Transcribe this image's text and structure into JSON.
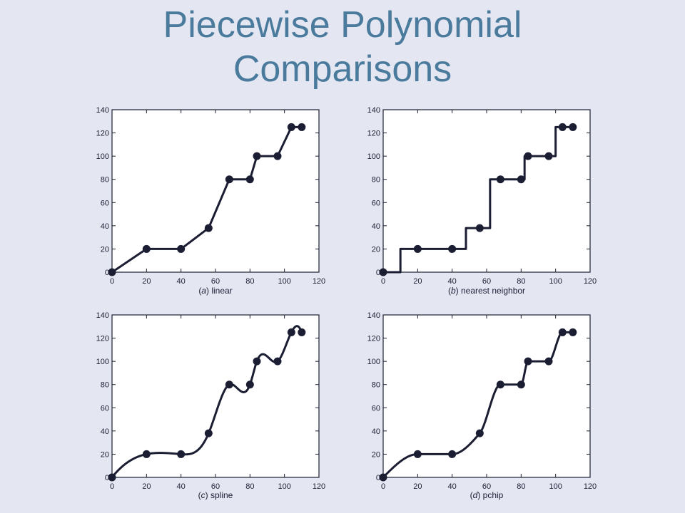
{
  "title": {
    "line1": "Piecewise Polynomial",
    "line2": "Comparisons"
  },
  "colors": {
    "background": "#e4e6f2",
    "plot_background": "#ffffff",
    "title": "#4a7a9c",
    "line": "#1b1e33"
  },
  "chart_data": [
    {
      "type": "line",
      "method": "linear",
      "caption_letter": "a",
      "caption_text": "linear",
      "x": [
        0,
        20,
        40,
        56,
        68,
        80,
        84,
        96,
        104,
        110
      ],
      "y": [
        0,
        20,
        20,
        38,
        80,
        80,
        100,
        100,
        125,
        125
      ],
      "xticks": [
        0,
        20,
        40,
        60,
        80,
        100,
        120
      ],
      "yticks": [
        0,
        20,
        40,
        60,
        80,
        100,
        120,
        140
      ],
      "xlim": [
        0,
        120
      ],
      "ylim": [
        0,
        140
      ],
      "xlabel": "",
      "ylabel": "",
      "grid": false
    },
    {
      "type": "line",
      "method": "nearest",
      "caption_letter": "b",
      "caption_text": "nearest neighbor",
      "x": [
        0,
        20,
        40,
        56,
        68,
        80,
        84,
        96,
        104,
        110
      ],
      "y": [
        0,
        20,
        20,
        38,
        80,
        80,
        100,
        100,
        125,
        125
      ],
      "xticks": [
        0,
        20,
        40,
        60,
        80,
        100,
        120
      ],
      "yticks": [
        0,
        20,
        40,
        60,
        80,
        100,
        120,
        140
      ],
      "xlim": [
        0,
        120
      ],
      "ylim": [
        0,
        140
      ],
      "xlabel": "",
      "ylabel": "",
      "grid": false
    },
    {
      "type": "line",
      "method": "spline",
      "caption_letter": "c",
      "caption_text": "spline",
      "x": [
        0,
        20,
        40,
        56,
        68,
        80,
        84,
        96,
        104,
        110
      ],
      "y": [
        0,
        20,
        20,
        38,
        80,
        80,
        100,
        100,
        125,
        125
      ],
      "xticks": [
        0,
        20,
        40,
        60,
        80,
        100,
        120
      ],
      "yticks": [
        0,
        20,
        40,
        60,
        80,
        100,
        120,
        140
      ],
      "xlim": [
        0,
        120
      ],
      "ylim": [
        0,
        140
      ],
      "xlabel": "",
      "ylabel": "",
      "grid": false
    },
    {
      "type": "line",
      "method": "pchip",
      "caption_letter": "d",
      "caption_text": "pchip",
      "x": [
        0,
        20,
        40,
        56,
        68,
        80,
        84,
        96,
        104,
        110
      ],
      "y": [
        0,
        20,
        20,
        38,
        80,
        80,
        100,
        100,
        125,
        125
      ],
      "xticks": [
        0,
        20,
        40,
        60,
        80,
        100,
        120
      ],
      "yticks": [
        0,
        20,
        40,
        60,
        80,
        100,
        120,
        140
      ],
      "xlim": [
        0,
        120
      ],
      "ylim": [
        0,
        140
      ],
      "xlabel": "",
      "ylabel": "",
      "grid": false
    }
  ]
}
